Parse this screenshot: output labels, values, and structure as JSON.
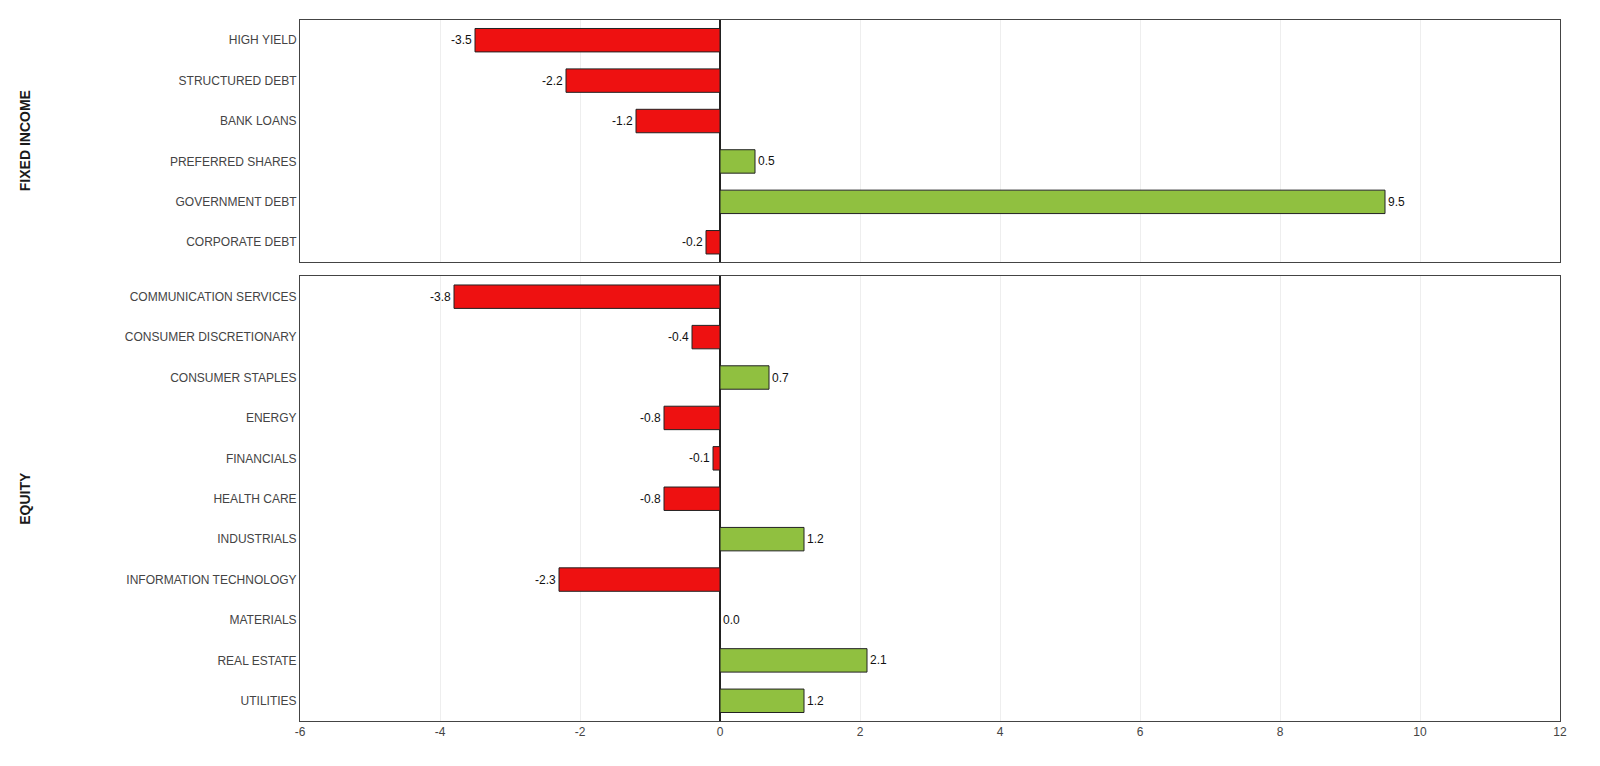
{
  "chart_data": [
    {
      "type": "bar",
      "title": "FIXED INCOME",
      "orientation": "horizontal",
      "categories": [
        "HIGH YIELD",
        "STRUCTURED DEBT",
        "BANK LOANS",
        "PREFERRED SHARES",
        "GOVERNMENT DEBT",
        "CORPORATE DEBT"
      ],
      "values": [
        -3.5,
        -2.2,
        -1.2,
        0.5,
        9.5,
        -0.2
      ],
      "value_labels": [
        "-3.5",
        "-2.2",
        "-1.2",
        "0.5",
        "9.5",
        "-0.2"
      ],
      "colors": [
        "#EE1111",
        "#EE1111",
        "#EE1111",
        "#90C040",
        "#90C040",
        "#EE1111"
      ],
      "xlim": [
        -6,
        12
      ],
      "xticks": [
        -6,
        -4,
        -2,
        0,
        2,
        4,
        6,
        8,
        10,
        12
      ],
      "grid": true,
      "data_labels": true,
      "tick_labels": "y"
    },
    {
      "type": "bar",
      "title": "EQUITY",
      "orientation": "horizontal",
      "categories": [
        "COMMUNICATION SERVICES",
        "CONSUMER DISCRETIONARY",
        "CONSUMER STAPLES",
        "ENERGY",
        "FINANCIALS",
        "HEALTH CARE",
        "INDUSTRIALS",
        "INFORMATION TECHNOLOGY",
        "MATERIALS",
        "REAL ESTATE",
        "UTILITIES"
      ],
      "values": [
        -3.8,
        -0.4,
        0.7,
        -0.8,
        -0.1,
        -0.8,
        1.2,
        -2.3,
        0.0,
        2.1,
        1.2
      ],
      "value_labels": [
        "-3.8",
        "-0.4",
        "0.7",
        "-0.8",
        "-0.1",
        "-0.8",
        "1.2",
        "-2.3",
        "0.0",
        "2.1",
        "1.2"
      ],
      "colors": [
        "#EE1111",
        "#EE1111",
        "#90C040",
        "#EE1111",
        "#EE1111",
        "#EE1111",
        "#90C040",
        "#EE1111",
        "#90C040",
        "#90C040",
        "#90C040"
      ],
      "xlim": [
        -6,
        12
      ],
      "xticks": [
        -6,
        -4,
        -2,
        0,
        2,
        4,
        6,
        8,
        10,
        12
      ],
      "grid": true,
      "data_labels": true,
      "tick_labels": true
    }
  ]
}
